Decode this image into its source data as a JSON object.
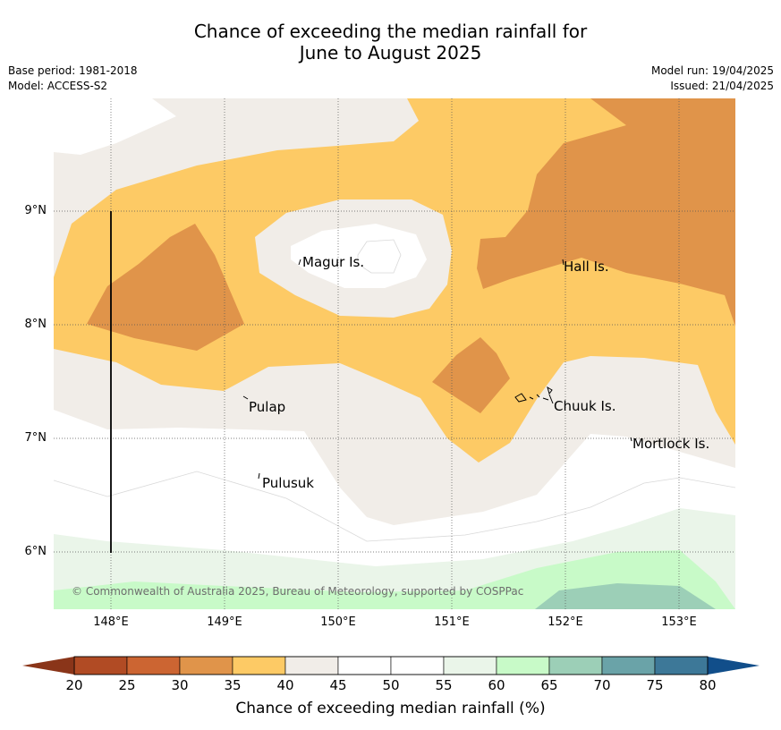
{
  "title_line1": "Chance of exceeding the median rainfall for",
  "title_line2": "June to August 2025",
  "base_period": "Base period: 1981-2018",
  "model": "Model: ACCESS-S2",
  "model_run": "Model run: 19/04/2025",
  "issued": "Issued: 21/04/2025",
  "lat_labels": [
    "9°N",
    "8°N",
    "7°N",
    "6°N"
  ],
  "lon_labels": [
    "148°E",
    "149°E",
    "150°E",
    "151°E",
    "152°E",
    "153°E"
  ],
  "places": {
    "magur": "Magur Is.",
    "hall": "Hall Is.",
    "pulap": "Pulap",
    "chuuk": "Chuuk Is.",
    "mortlock": "Mortlock Is.",
    "pulusuk": "Pulusuk"
  },
  "copyright": "© Commonwealth of Australia 2025, Bureau of Meteorology, supported by COSPPac",
  "colorbar": {
    "title": "Chance of exceeding median rainfall (%)",
    "ticks": [
      "20",
      "25",
      "30",
      "35",
      "40",
      "45",
      "50",
      "55",
      "60",
      "65",
      "70",
      "75",
      "80"
    ],
    "colors": [
      "#b14b24",
      "#cc6532",
      "#e0944a",
      "#fdca65",
      "#f1ede8",
      "#ffffff",
      "#ffffff",
      "#eaf5e9",
      "#c8fac8",
      "#9ccfb7",
      "#6aa3a8",
      "#3d7898"
    ],
    "under_color": "#8a3519",
    "over_color": "#114e8a"
  }
}
